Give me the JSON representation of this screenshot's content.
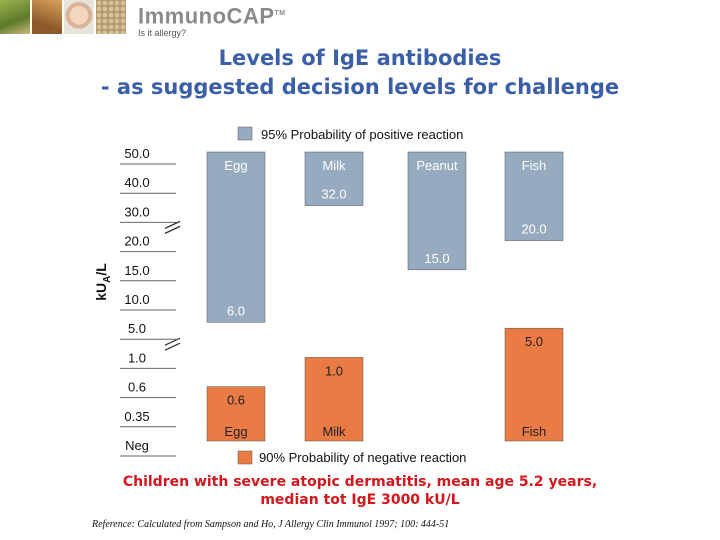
{
  "brand": {
    "name": "ImmunoCAP",
    "trademark": "TM",
    "tagline": "Is it allergy?"
  },
  "title": {
    "line1": "Levels of IgE antibodies",
    "line2": "- as suggested decision levels for challenge"
  },
  "footer": {
    "line1": "Children with severe atopic dermatitis, mean age 5.2 years,",
    "line2": "median tot IgE 3000 kU/L"
  },
  "reference": "Reference: Calculated from Sampson and Ho, J Allergy Clin Immunol 1997; 100: 444-51",
  "colors": {
    "positive": "#96abc0",
    "negative": "#ea7b45",
    "title": "#3a5fa8",
    "footer": "#d4161d"
  },
  "chart_data": {
    "type": "bar",
    "ylabel": "kUA/L",
    "y_ticks": [
      "50.0",
      "40.0",
      "30.0",
      "20.0",
      "15.0",
      "10.0",
      "5.0",
      "1.0",
      "0.6",
      "0.35",
      "Neg"
    ],
    "axis_break_marks": 2,
    "legend": {
      "positive": "95% Probability of positive reaction",
      "negative": "90% Probability of negative reaction"
    },
    "series": [
      {
        "name": "95% Probability of positive reaction",
        "color": "#96abc0",
        "categories": [
          "Egg",
          "Milk",
          "Peanut",
          "Fish"
        ],
        "values": [
          6.0,
          32.0,
          15.0,
          20.0
        ],
        "labels": [
          "6.0",
          "32.0",
          "15.0",
          "20.0"
        ]
      },
      {
        "name": "90% Probability of negative reaction",
        "color": "#ea7b45",
        "categories": [
          "Egg",
          "Milk",
          "Fish"
        ],
        "values": [
          0.6,
          1.0,
          5.0
        ],
        "labels": [
          "0.6",
          "1.0",
          "5.0"
        ]
      }
    ]
  }
}
